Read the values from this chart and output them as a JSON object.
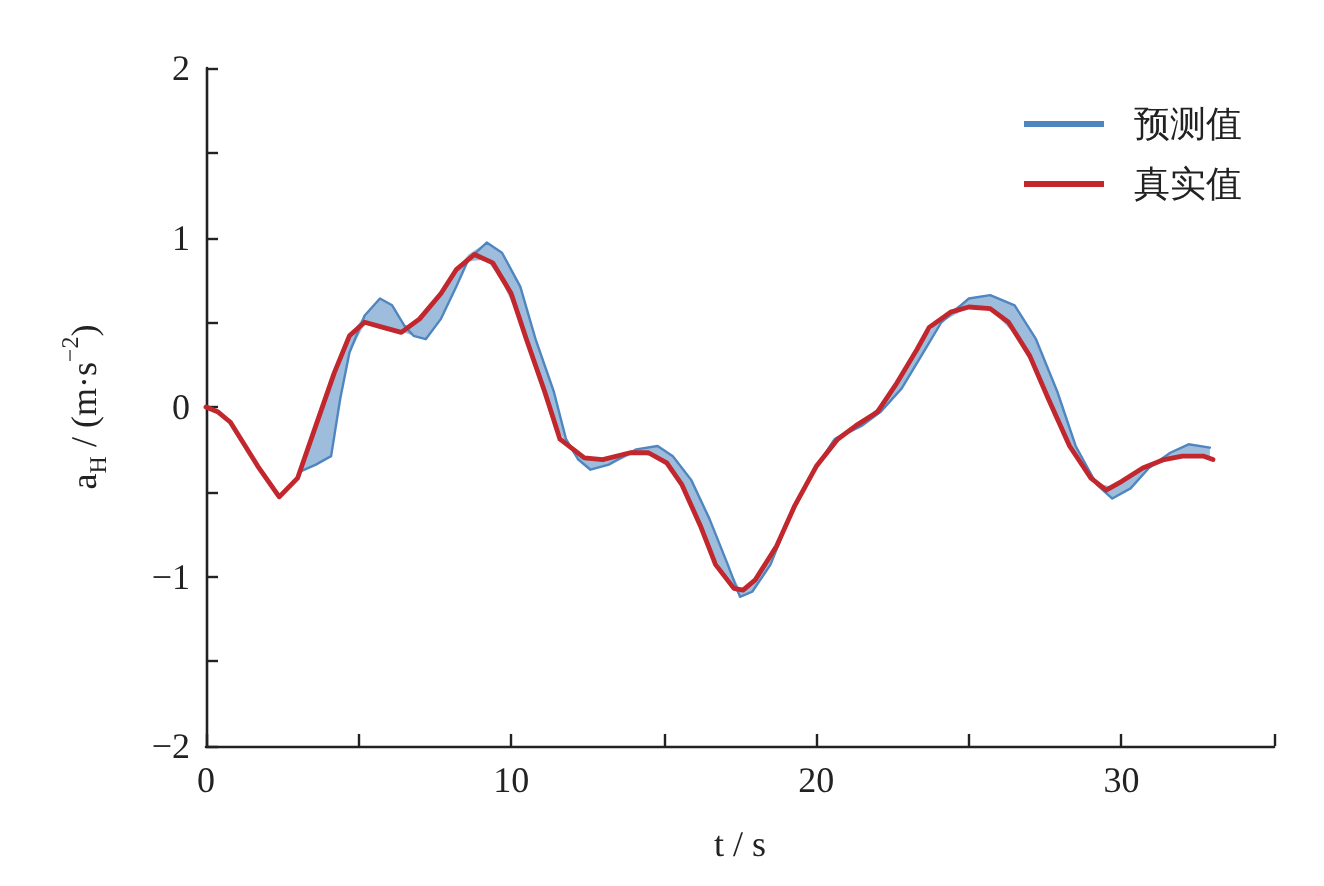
{
  "chart_data": {
    "type": "line",
    "xlabel": "t / s",
    "ylabel": "a$_{H}$ / (m·s$^{−2}$)",
    "xlim": [
      0,
      35
    ],
    "xticks": [
      0,
      {
        "value": 5,
        "label": null
      },
      10,
      {
        "value": 15,
        "label": null
      },
      20,
      {
        "value": 25,
        "label": null
      },
      30,
      {
        "value": 35,
        "label": null
      }
    ],
    "ylim": [
      -2,
      2
    ],
    "yticks": [
      {
        "value": -2,
        "label": "−2"
      },
      {
        "value": -1.5,
        "label": null
      },
      {
        "value": -1,
        "label": "−1"
      },
      {
        "value": -0.5,
        "label": null
      },
      0,
      {
        "value": 0.5,
        "label": null
      },
      1,
      {
        "value": 1.5,
        "label": null
      },
      2
    ],
    "legend": "top right",
    "marker": "none",
    "line_style": "solid",
    "series": [
      {
        "name": "预测值",
        "color": "#4f86c0",
        "x": [
          3.1,
          3.6,
          4.1,
          4.4,
          4.7,
          5.2,
          5.7,
          6.1,
          6.5,
          6.8,
          7.2,
          7.7,
          8.2,
          8.6,
          9.2,
          9.7,
          10.3,
          10.8,
          11.4,
          11.8,
          12.2,
          12.6,
          13.2,
          14.1,
          14.8,
          15.3,
          15.9,
          16.5,
          17.1,
          17.5,
          17.9,
          18.5,
          19.1,
          19.9,
          20.6,
          21.5,
          22.1,
          22.8,
          23.5,
          24.1,
          25.0,
          25.7,
          26.5,
          27.2,
          27.9,
          28.5,
          29.2,
          29.7,
          30.3,
          30.9,
          31.6,
          32.2,
          32.9
        ],
        "values": [
          -0.38,
          -0.34,
          -0.29,
          0.05,
          0.32,
          0.54,
          0.64,
          0.6,
          0.48,
          0.42,
          0.4,
          0.52,
          0.71,
          0.87,
          0.97,
          0.91,
          0.71,
          0.4,
          0.09,
          -0.19,
          -0.31,
          -0.37,
          -0.34,
          -0.25,
          -0.23,
          -0.29,
          -0.43,
          -0.66,
          -0.93,
          -1.12,
          -1.09,
          -0.93,
          -0.66,
          -0.38,
          -0.19,
          -0.11,
          -0.03,
          0.11,
          0.32,
          0.5,
          0.64,
          0.66,
          0.6,
          0.4,
          0.09,
          -0.23,
          -0.46,
          -0.54,
          -0.48,
          -0.36,
          -0.27,
          -0.22,
          -0.24
        ],
        "lower": [
          -0.38,
          -0.34,
          -0.29,
          0.05,
          0.32,
          0.49,
          0.47,
          0.45,
          0.44,
          0.42,
          0.4,
          0.52,
          0.71,
          0.86,
          0.87,
          0.74,
          0.51,
          0.21,
          -0.08,
          -0.22,
          -0.31,
          -0.37,
          -0.34,
          -0.27,
          -0.3,
          -0.38,
          -0.57,
          -0.84,
          -1.02,
          -1.12,
          -1.09,
          -0.93,
          -0.68,
          -0.4,
          -0.21,
          -0.11,
          -0.03,
          0.11,
          0.32,
          0.5,
          0.59,
          0.58,
          0.43,
          0.21,
          -0.05,
          -0.29,
          -0.46,
          -0.54,
          -0.48,
          -0.36,
          -0.3,
          -0.29,
          -0.3
        ],
        "upper": [
          -0.36,
          -0.12,
          0.14,
          0.29,
          0.42,
          0.54,
          0.64,
          0.6,
          0.48,
          0.49,
          0.57,
          0.67,
          0.81,
          0.9,
          0.97,
          0.91,
          0.71,
          0.4,
          0.09,
          -0.19,
          -0.28,
          -0.3,
          -0.3,
          -0.25,
          -0.23,
          -0.29,
          -0.43,
          -0.66,
          -0.93,
          -1.08,
          -1.03,
          -0.88,
          -0.64,
          -0.37,
          -0.18,
          -0.09,
          0.01,
          0.19,
          0.4,
          0.53,
          0.64,
          0.66,
          0.6,
          0.4,
          0.09,
          -0.23,
          -0.45,
          -0.47,
          -0.41,
          -0.34,
          -0.27,
          -0.22,
          -0.24
        ]
      },
      {
        "name": "真实值",
        "color": "#c1272d",
        "x": [
          0,
          0.4,
          0.8,
          1.7,
          2.4,
          3.0,
          3.6,
          4.2,
          4.7,
          5.2,
          5.8,
          6.4,
          7.0,
          7.7,
          8.2,
          8.8,
          9.4,
          10.0,
          10.5,
          11.1,
          11.6,
          12.4,
          13.0,
          13.9,
          14.5,
          15.1,
          15.6,
          16.2,
          16.7,
          17.3,
          17.6,
          18.0,
          18.7,
          19.3,
          20.0,
          20.7,
          21.3,
          22.0,
          22.6,
          23.3,
          23.7,
          24.4,
          25.0,
          25.7,
          26.3,
          27.0,
          27.6,
          28.3,
          29.0,
          29.5,
          30.0,
          30.7,
          31.4,
          32.0,
          32.7,
          33.0
        ],
        "values": [
          0,
          -0.03,
          -0.09,
          -0.35,
          -0.53,
          -0.42,
          -0.11,
          0.2,
          0.42,
          0.5,
          0.47,
          0.44,
          0.52,
          0.67,
          0.81,
          0.9,
          0.85,
          0.67,
          0.4,
          0.09,
          -0.19,
          -0.3,
          -0.31,
          -0.27,
          -0.27,
          -0.33,
          -0.46,
          -0.7,
          -0.93,
          -1.07,
          -1.08,
          -1.02,
          -0.82,
          -0.58,
          -0.35,
          -0.19,
          -0.11,
          -0.03,
          0.13,
          0.34,
          0.47,
          0.56,
          0.59,
          0.58,
          0.5,
          0.3,
          0.05,
          -0.23,
          -0.42,
          -0.49,
          -0.44,
          -0.36,
          -0.31,
          -0.29,
          -0.29,
          -0.31
        ]
      }
    ]
  }
}
